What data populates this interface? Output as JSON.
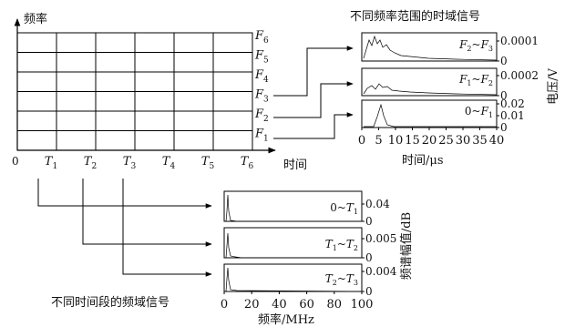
{
  "diagram": {
    "freq_axis_label": "频率",
    "time_axis_label": "时间",
    "origin_label": "0",
    "time_marks": [
      {
        "letter": "T",
        "sub": "1"
      },
      {
        "letter": "T",
        "sub": "2"
      },
      {
        "letter": "T",
        "sub": "3"
      },
      {
        "letter": "T",
        "sub": "4"
      },
      {
        "letter": "T",
        "sub": "5"
      },
      {
        "letter": "T",
        "sub": "6"
      }
    ],
    "freq_marks": [
      {
        "letter": "F",
        "sub": "1"
      },
      {
        "letter": "F",
        "sub": "2"
      },
      {
        "letter": "F",
        "sub": "3"
      },
      {
        "letter": "F",
        "sub": "4"
      },
      {
        "letter": "F",
        "sub": "5"
      },
      {
        "letter": "F",
        "sub": "6"
      }
    ],
    "grid": {
      "columns": 6,
      "rows": 6
    },
    "line_color": "#000000"
  },
  "time_signals": {
    "title": "不同频率范围的时域信号",
    "y_axis_label": "电压/V",
    "x_axis_label": "时间/μs",
    "x_ticks": [
      "0",
      "5",
      "10",
      "15",
      "20",
      "25",
      "30",
      "35",
      "40"
    ],
    "panels": [
      {
        "band": {
          "a": "F",
          "as": "2",
          "sep": "~",
          "b": "F",
          "bs": "3"
        },
        "ticks": [
          "0.0001",
          "0"
        ]
      },
      {
        "band": {
          "a": "F",
          "as": "1",
          "sep": "~",
          "b": "F",
          "bs": "2"
        },
        "ticks": [
          "0.0002",
          "0"
        ]
      },
      {
        "band": {
          "a": "0",
          "as": "",
          "sep": "~",
          "b": "F",
          "bs": "1"
        },
        "ticks": [
          "0.02",
          "0.01",
          "0"
        ]
      }
    ]
  },
  "freq_signals": {
    "title": "不同时间段的频域信号",
    "y_axis_label": "频谱幅值/dB",
    "x_axis_label": "频率/MHz",
    "x_ticks": [
      "0",
      "20",
      "40",
      "60",
      "80",
      "100"
    ],
    "panels": [
      {
        "band": {
          "a": "0",
          "as": "",
          "sep": "~",
          "b": "T",
          "bs": "1"
        },
        "ticks": [
          "0.04",
          "0"
        ]
      },
      {
        "band": {
          "a": "T",
          "as": "1",
          "sep": "~",
          "b": "T",
          "bs": "2"
        },
        "ticks": [
          "0.005",
          "0"
        ]
      },
      {
        "band": {
          "a": "T",
          "as": "2",
          "sep": "~",
          "b": "T",
          "bs": "3"
        },
        "ticks": [
          "0.004",
          "0"
        ]
      }
    ]
  }
}
